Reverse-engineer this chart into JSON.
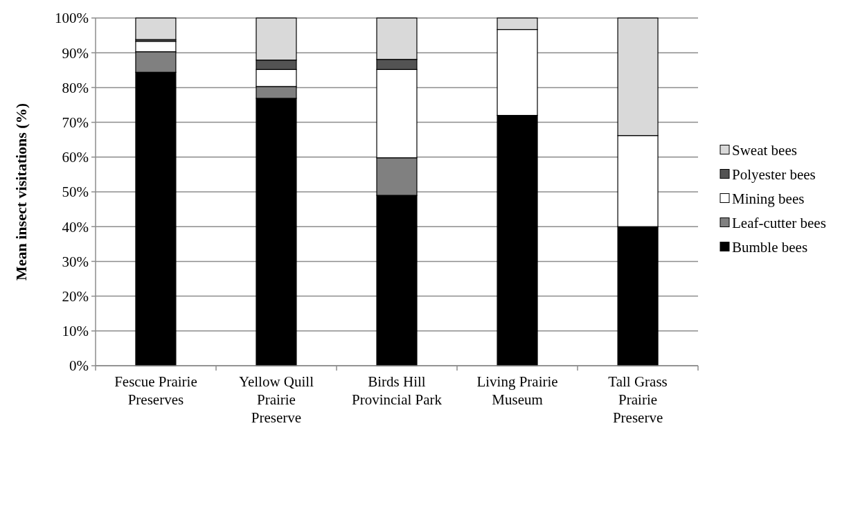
{
  "chart_data": {
    "type": "bar",
    "stacked": true,
    "ylabel": "Mean insect visitations (%)",
    "categories": [
      "Fescue Prairie Preserves",
      "Yellow Quill Prairie Preserve",
      "Birds Hill Provincial Park",
      "Living Prairie Museum",
      "Tall Grass Prairie Preserve"
    ],
    "series": [
      {
        "name": "Bumble bees",
        "color": "#000000",
        "values": [
          84.4,
          76.9,
          49.0,
          72.0,
          40.0
        ]
      },
      {
        "name": "Leaf-cutter bees",
        "color": "#808080",
        "values": [
          5.9,
          3.4,
          10.8,
          0,
          0
        ]
      },
      {
        "name": "Mining bees",
        "color": "#ffffff",
        "values": [
          3.0,
          4.9,
          25.4,
          24.7,
          26.2
        ]
      },
      {
        "name": "Polyester bees",
        "color": "#535353",
        "values": [
          0.5,
          2.7,
          2.9,
          0,
          0
        ]
      },
      {
        "name": "Sweat bees",
        "color": "#d9d9d9",
        "values": [
          6.2,
          12.1,
          11.9,
          3.3,
          33.8
        ]
      }
    ],
    "ylim": [
      0,
      100
    ],
    "yticks": [
      {
        "value": 0,
        "label": "0%"
      },
      {
        "value": 10,
        "label": "10%"
      },
      {
        "value": 20,
        "label": "20%"
      },
      {
        "value": 30,
        "label": "30%"
      },
      {
        "value": 40,
        "label": "40%"
      },
      {
        "value": 50,
        "label": "50%"
      },
      {
        "value": 60,
        "label": "60%"
      },
      {
        "value": 70,
        "label": "70%"
      },
      {
        "value": 80,
        "label": "80%"
      },
      {
        "value": 90,
        "label": "90%"
      },
      {
        "value": 100,
        "label": "100%"
      }
    ],
    "grid": "y",
    "legend": "right"
  }
}
